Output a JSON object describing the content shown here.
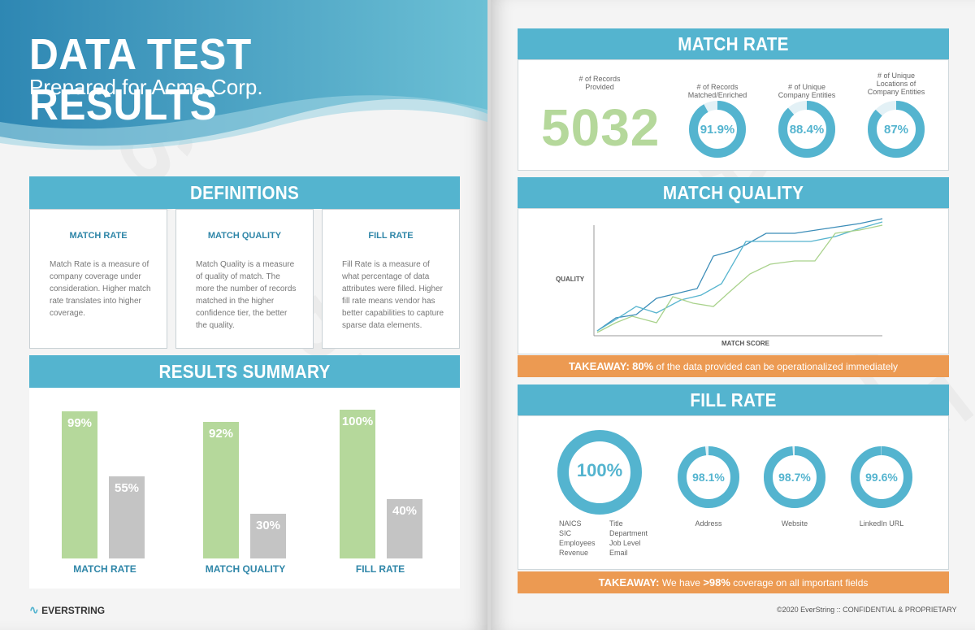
{
  "header": {
    "title": "DATA TEST RESULTS",
    "subtitle": "Prepared for Acme Corp."
  },
  "watermark": "SAMPLE",
  "definitions": {
    "heading": "DEFINITIONS",
    "items": [
      {
        "title": "MATCH RATE",
        "text": "Match Rate is a measure of company coverage under consideration. Higher match rate translates into higher coverage."
      },
      {
        "title": "MATCH QUALITY",
        "text": "Match Quality is a measure of quality of match. The more the number of records matched in the higher confidence tier, the better the quality."
      },
      {
        "title": "FILL RATE",
        "text": "Fill Rate is a measure of what percentage of data attributes were filled. Higher fill rate means vendor has better capabilities to capture sparse data elements."
      }
    ]
  },
  "results_summary": {
    "heading": "RESULTS SUMMARY",
    "groups": [
      {
        "label": "MATCH RATE",
        "green_label": "99%",
        "grey_label": "55%"
      },
      {
        "label": "MATCH QUALITY",
        "green_label": "92%",
        "grey_label": "30%"
      },
      {
        "label": "FILL RATE",
        "green_label": "100%",
        "grey_label": "40%"
      }
    ]
  },
  "chart_data": {
    "type": "bar",
    "categories": [
      "MATCH RATE",
      "MATCH QUALITY",
      "FILL RATE"
    ],
    "series": [
      {
        "values": [
          99,
          92,
          100
        ],
        "color": "#b5d89b"
      },
      {
        "values": [
          55,
          30,
          40
        ],
        "color": "#c4c4c4"
      }
    ],
    "ylim": [
      0,
      100
    ]
  },
  "match_rate": {
    "heading": "MATCH RATE",
    "records_label_1": "# of Records",
    "records_label_2": "Provided",
    "records_value": "5032",
    "donuts": [
      {
        "label_lines": [
          "# of Records",
          "Matched/Enriched"
        ],
        "value_text": "91.9%",
        "value": 91.9
      },
      {
        "label_lines": [
          "# of Unique",
          "Company Entities"
        ],
        "value_text": "88.4%",
        "value": 88.4
      },
      {
        "label_lines": [
          "# of Unique",
          "Locations of",
          "Company Entities"
        ],
        "value_text": "87%",
        "value": 87
      }
    ]
  },
  "match_quality": {
    "heading": "MATCH QUALITY",
    "ylabel": "QUALITY",
    "xlabel": "MATCH SCORE",
    "takeaway_prefix": "TAKEAWAY:",
    "takeaway_highlight": "80%",
    "takeaway_rest": "of the data provided can be operationalized immediately"
  },
  "fill_rate": {
    "heading": "FILL RATE",
    "big_donut": {
      "value_text": "100%",
      "value": 100
    },
    "fields_col1": [
      "NAICS",
      "SIC",
      "Employees",
      "Revenue"
    ],
    "fields_col2": [
      "Title",
      "Department",
      "Job Level",
      "Email"
    ],
    "donuts": [
      {
        "label": "Address",
        "value_text": "98.1%",
        "value": 98.1
      },
      {
        "label": "Website",
        "value_text": "98.7%",
        "value": 98.7
      },
      {
        "label": "LinkedIn URL",
        "value_text": "99.6%",
        "value": 99.6
      }
    ],
    "takeaway_prefix": "TAKEAWAY:",
    "takeaway_mid": "We have",
    "takeaway_highlight": ">98%",
    "takeaway_rest": "coverage on all important fields"
  },
  "footer": {
    "logo": "EVERSTRING",
    "copyright": "©2020 EverString :: CONFIDENTIAL & PROPRIETARY"
  },
  "colors": {
    "accent": "#54b4cf",
    "green": "#b5d89b",
    "grey": "#c4c4c4",
    "orange": "#ec9a52",
    "heading_blue": "#2f86a8"
  }
}
